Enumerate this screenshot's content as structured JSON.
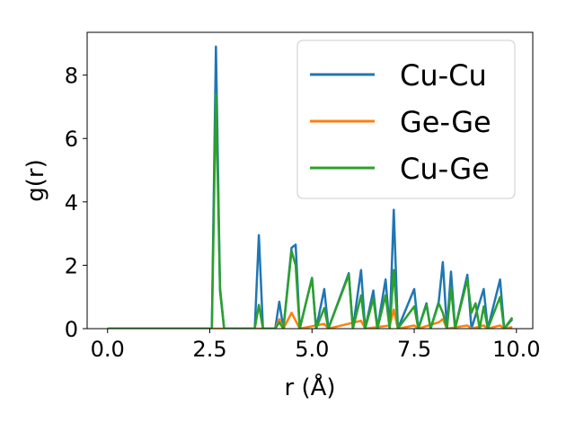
{
  "chart_data": {
    "type": "line",
    "title": "",
    "xlabel": "r (Å)",
    "ylabel": "g(r)",
    "xlim": [
      -0.5,
      10.4
    ],
    "ylim": [
      0,
      9.35
    ],
    "xticks": [
      0.0,
      2.5,
      5.0,
      7.5,
      10.0
    ],
    "xtick_labels": [
      "0.0",
      "2.5",
      "5.0",
      "7.5",
      "10.0"
    ],
    "yticks": [
      0,
      2,
      4,
      6,
      8
    ],
    "ytick_labels": [
      "0",
      "2",
      "4",
      "6",
      "8"
    ],
    "grid": false,
    "legend_position": "top-right",
    "series": [
      {
        "name": "Cu-Cu",
        "color": "#1f77b4",
        "points": [
          [
            0.0,
            0
          ],
          [
            2.5,
            0
          ],
          [
            2.55,
            0
          ],
          [
            2.65,
            8.9
          ],
          [
            2.75,
            1.2
          ],
          [
            2.85,
            0
          ],
          [
            3.6,
            0
          ],
          [
            3.7,
            2.95
          ],
          [
            3.8,
            0
          ],
          [
            4.1,
            0
          ],
          [
            4.2,
            0.85
          ],
          [
            4.3,
            0
          ],
          [
            4.5,
            2.55
          ],
          [
            4.6,
            2.65
          ],
          [
            4.7,
            0
          ],
          [
            5.0,
            1.6
          ],
          [
            5.1,
            0
          ],
          [
            5.3,
            1.25
          ],
          [
            5.4,
            0
          ],
          [
            5.9,
            1.75
          ],
          [
            6.0,
            0
          ],
          [
            6.2,
            1.85
          ],
          [
            6.3,
            0
          ],
          [
            6.5,
            1.2
          ],
          [
            6.6,
            0
          ],
          [
            6.8,
            1.55
          ],
          [
            6.9,
            0
          ],
          [
            7.0,
            3.75
          ],
          [
            7.1,
            0
          ],
          [
            7.5,
            1.25
          ],
          [
            7.6,
            0
          ],
          [
            7.8,
            0.8
          ],
          [
            7.9,
            0
          ],
          [
            8.1,
            0.85
          ],
          [
            8.2,
            2.1
          ],
          [
            8.3,
            0
          ],
          [
            8.4,
            1.8
          ],
          [
            8.5,
            0
          ],
          [
            8.8,
            1.7
          ],
          [
            8.9,
            0
          ],
          [
            9.2,
            1.25
          ],
          [
            9.3,
            0
          ],
          [
            9.6,
            1.55
          ],
          [
            9.7,
            0
          ],
          [
            9.9,
            0.3
          ]
        ]
      },
      {
        "name": "Ge-Ge",
        "color": "#ff7f0e",
        "points": [
          [
            0.0,
            0
          ],
          [
            4.1,
            0
          ],
          [
            4.2,
            0.3
          ],
          [
            4.3,
            0
          ],
          [
            4.5,
            0.5
          ],
          [
            4.7,
            0
          ],
          [
            5.3,
            0.15
          ],
          [
            5.4,
            0
          ],
          [
            6.2,
            0.25
          ],
          [
            6.3,
            0
          ],
          [
            6.9,
            0.1
          ],
          [
            7.0,
            0.6
          ],
          [
            7.1,
            0
          ],
          [
            7.5,
            0.1
          ],
          [
            7.6,
            0
          ],
          [
            8.1,
            0.2
          ],
          [
            8.2,
            0.3
          ],
          [
            8.3,
            0
          ],
          [
            8.8,
            0.1
          ],
          [
            8.9,
            0
          ],
          [
            9.2,
            0.1
          ],
          [
            9.3,
            0
          ],
          [
            9.6,
            0.1
          ],
          [
            9.7,
            0
          ],
          [
            9.9,
            0.05
          ]
        ]
      },
      {
        "name": "Cu-Ge",
        "color": "#2ca02c",
        "points": [
          [
            0.0,
            0
          ],
          [
            2.5,
            0
          ],
          [
            2.55,
            0
          ],
          [
            2.65,
            7.4
          ],
          [
            2.75,
            1.3
          ],
          [
            2.85,
            0
          ],
          [
            3.6,
            0
          ],
          [
            3.7,
            0.75
          ],
          [
            3.8,
            0
          ],
          [
            4.1,
            0
          ],
          [
            4.2,
            0.2
          ],
          [
            4.3,
            0
          ],
          [
            4.5,
            2.45
          ],
          [
            4.6,
            2.0
          ],
          [
            4.7,
            0
          ],
          [
            5.0,
            1.6
          ],
          [
            5.1,
            0
          ],
          [
            5.3,
            0.65
          ],
          [
            5.4,
            0
          ],
          [
            5.9,
            1.7
          ],
          [
            6.0,
            0
          ],
          [
            6.2,
            1.05
          ],
          [
            6.3,
            0
          ],
          [
            6.5,
            0.95
          ],
          [
            6.6,
            0
          ],
          [
            6.8,
            1.05
          ],
          [
            6.9,
            0
          ],
          [
            7.0,
            1.85
          ],
          [
            7.1,
            0
          ],
          [
            7.5,
            0.7
          ],
          [
            7.6,
            0
          ],
          [
            7.8,
            0.75
          ],
          [
            7.9,
            0
          ],
          [
            8.1,
            0.8
          ],
          [
            8.2,
            0.5
          ],
          [
            8.3,
            0
          ],
          [
            8.4,
            1.3
          ],
          [
            8.5,
            0
          ],
          [
            8.8,
            1.55
          ],
          [
            8.9,
            0.5
          ],
          [
            9.0,
            0.8
          ],
          [
            9.1,
            0
          ],
          [
            9.2,
            0.7
          ],
          [
            9.3,
            0
          ],
          [
            9.6,
            1.0
          ],
          [
            9.7,
            0
          ],
          [
            9.9,
            0.35
          ]
        ]
      }
    ]
  }
}
